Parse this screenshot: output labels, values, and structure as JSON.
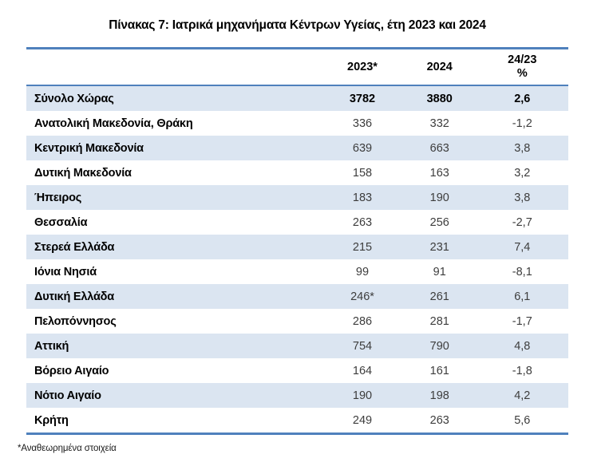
{
  "title": "Πίνακας 7: Ιατρικά μηχανήματα Κέντρων Υγείας, έτη 2023 και 2024",
  "footnote": "*Αναθεωρημένα στοιχεία",
  "colors": {
    "rule_blue": "#4f81bd",
    "band_blue": "#dbe5f1",
    "text_black": "#000000",
    "text_gray": "#3d3d3d"
  },
  "table": {
    "columns": {
      "region": "",
      "y2023": "2023*",
      "y2024": "2024",
      "pct": "24/23\n%"
    },
    "rows": [
      {
        "region": "Σύνολο Χώρας",
        "y2023": "3782",
        "y2024": "3880",
        "pct": "2,6"
      },
      {
        "region": "Ανατολική Μακεδονία, Θράκη",
        "y2023": "336",
        "y2024": "332",
        "pct": "-1,2"
      },
      {
        "region": "Κεντρική Μακεδονία",
        "y2023": "639",
        "y2024": "663",
        "pct": "3,8"
      },
      {
        "region": "Δυτική Μακεδονία",
        "y2023": "158",
        "y2024": "163",
        "pct": "3,2"
      },
      {
        "region": "Ήπειρος",
        "y2023": "183",
        "y2024": "190",
        "pct": "3,8"
      },
      {
        "region": "Θεσσαλία",
        "y2023": "263",
        "y2024": "256",
        "pct": "-2,7"
      },
      {
        "region": "Στερεά Ελλάδα",
        "y2023": "215",
        "y2024": "231",
        "pct": "7,4"
      },
      {
        "region": "Ιόνια Νησιά",
        "y2023": "99",
        "y2024": "91",
        "pct": "-8,1"
      },
      {
        "region": "Δυτική Ελλάδα",
        "y2023": "246*",
        "y2024": "261",
        "pct": "6,1"
      },
      {
        "region": "Πελοπόννησος",
        "y2023": "286",
        "y2024": "281",
        "pct": "-1,7"
      },
      {
        "region": "Αττική",
        "y2023": "754",
        "y2024": "790",
        "pct": "4,8"
      },
      {
        "region": "Βόρειο Αιγαίο",
        "y2023": "164",
        "y2024": "161",
        "pct": "-1,8"
      },
      {
        "region": "Νότιο Αιγαίο",
        "y2023": "190",
        "y2024": "198",
        "pct": "4,2"
      },
      {
        "region": "Κρήτη",
        "y2023": "249",
        "y2024": "263",
        "pct": "5,6"
      }
    ]
  }
}
